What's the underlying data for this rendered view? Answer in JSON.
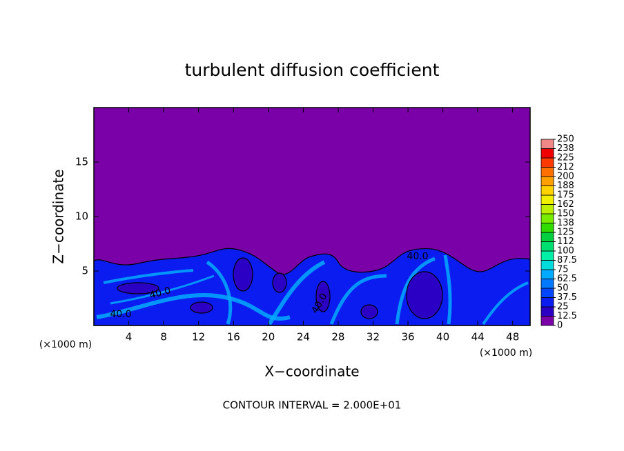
{
  "chart_data": {
    "type": "contour",
    "title": "turbulent diffusion coefficient",
    "xlabel": "X−coordinate",
    "ylabel": "Z−coordinate",
    "x_unit": "(×1000 m)",
    "y_unit": "(×1000 m)",
    "footer": "CONTOUR INTERVAL = 2.000E+01",
    "xlim": [
      0,
      50
    ],
    "ylim": [
      0,
      20
    ],
    "xticks": [
      4,
      8,
      12,
      16,
      20,
      24,
      28,
      32,
      36,
      40,
      44,
      48
    ],
    "yticks": [
      5,
      10,
      15
    ],
    "contour_labels": [
      "40.0",
      "40.0",
      "40.0",
      "40.0"
    ],
    "colorbar": {
      "lim": [
        0,
        250
      ],
      "ticks": [
        0,
        12.5,
        25,
        37.5,
        50,
        62.5,
        75,
        87.5,
        100,
        {
          "value": 112.5,
          "label": "112"
        },
        125,
        {
          "value": 137.5,
          "label": "138"
        },
        150,
        {
          "value": 162.5,
          "label": "162"
        },
        175,
        {
          "value": 187.5,
          "label": "188"
        },
        200,
        {
          "value": 212.5,
          "label": "212"
        },
        225,
        {
          "value": 237.5,
          "label": "238"
        },
        250
      ],
      "colors": [
        "#7a00a8",
        "#2c00c4",
        "#0a1cf0",
        "#0046ff",
        "#0078ff",
        "#00aaff",
        "#00dcdc",
        "#00f0a8",
        "#00e070",
        "#00d040",
        "#30dc00",
        "#78ec00",
        "#bcf000",
        "#f0f000",
        "#ffd200",
        "#ffa000",
        "#ff7000",
        "#ff3a00",
        "#f00000",
        "#f08888"
      ]
    }
  }
}
